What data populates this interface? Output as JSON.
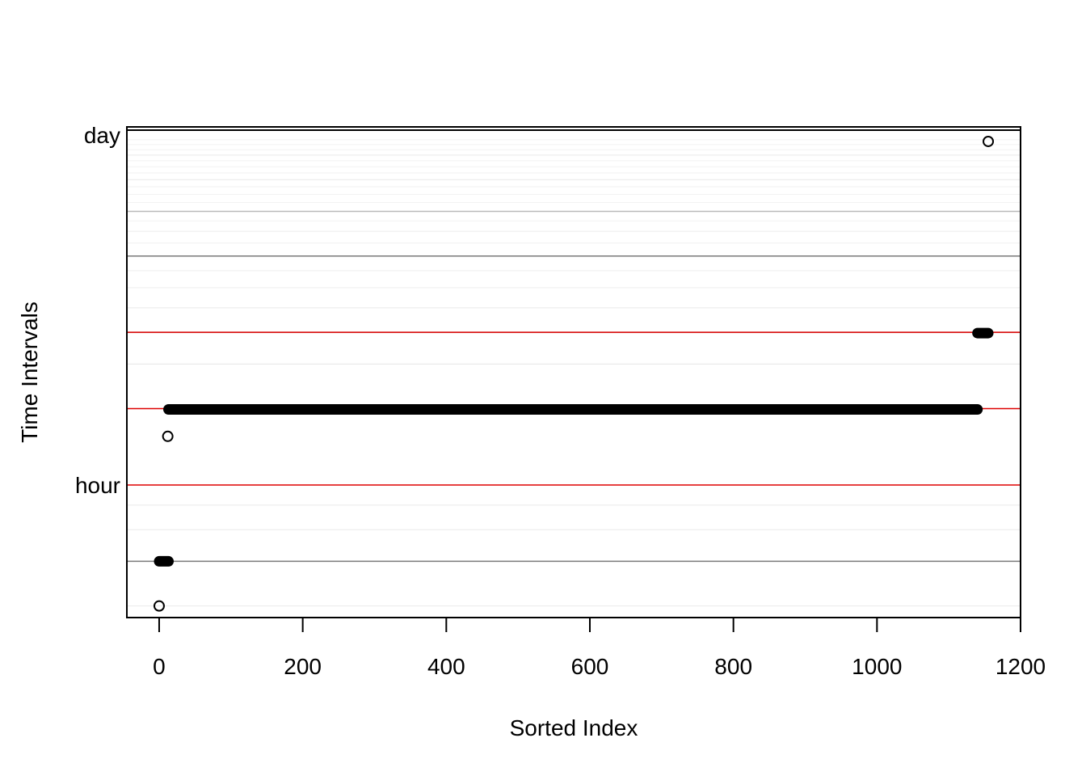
{
  "chart_data": {
    "type": "scatter",
    "title": "",
    "xlabel": "Sorted Index",
    "ylabel": "Time Intervals",
    "log_scale_y": true,
    "xlim": [
      -45,
      1200
    ],
    "ylim_seconds": [
      1080,
      93000
    ],
    "x_ticks": [
      {
        "value": 0,
        "label": "0"
      },
      {
        "value": 200,
        "label": "200"
      },
      {
        "value": 400,
        "label": "400"
      },
      {
        "value": 600,
        "label": "600"
      },
      {
        "value": 800,
        "label": "800"
      },
      {
        "value": 1000,
        "label": "1000"
      },
      {
        "value": 1200,
        "label": "1200"
      }
    ],
    "y_ticks": [
      {
        "seconds": 3600,
        "label": "hour"
      },
      {
        "seconds": 86400,
        "label": "day"
      }
    ],
    "grid": true,
    "reference_lines_seconds": [
      3600,
      7200,
      14400
    ],
    "reference_line_color": "#dd0000",
    "point_color": "#000000",
    "series": [
      {
        "x_range": [
          0,
          13
        ],
        "y_seconds": 1800,
        "style": "dense-run"
      },
      {
        "x_range": [
          13,
          1140
        ],
        "y_seconds": 7150,
        "style": "dense-run"
      },
      {
        "x_range": [
          1140,
          1155
        ],
        "y_seconds": 14300,
        "style": "dense-run"
      }
    ],
    "points": [
      {
        "x": 0,
        "y_seconds": 1200
      },
      {
        "x": 12,
        "y_seconds": 5600
      },
      {
        "x": 1155,
        "y_seconds": 81500
      }
    ]
  }
}
